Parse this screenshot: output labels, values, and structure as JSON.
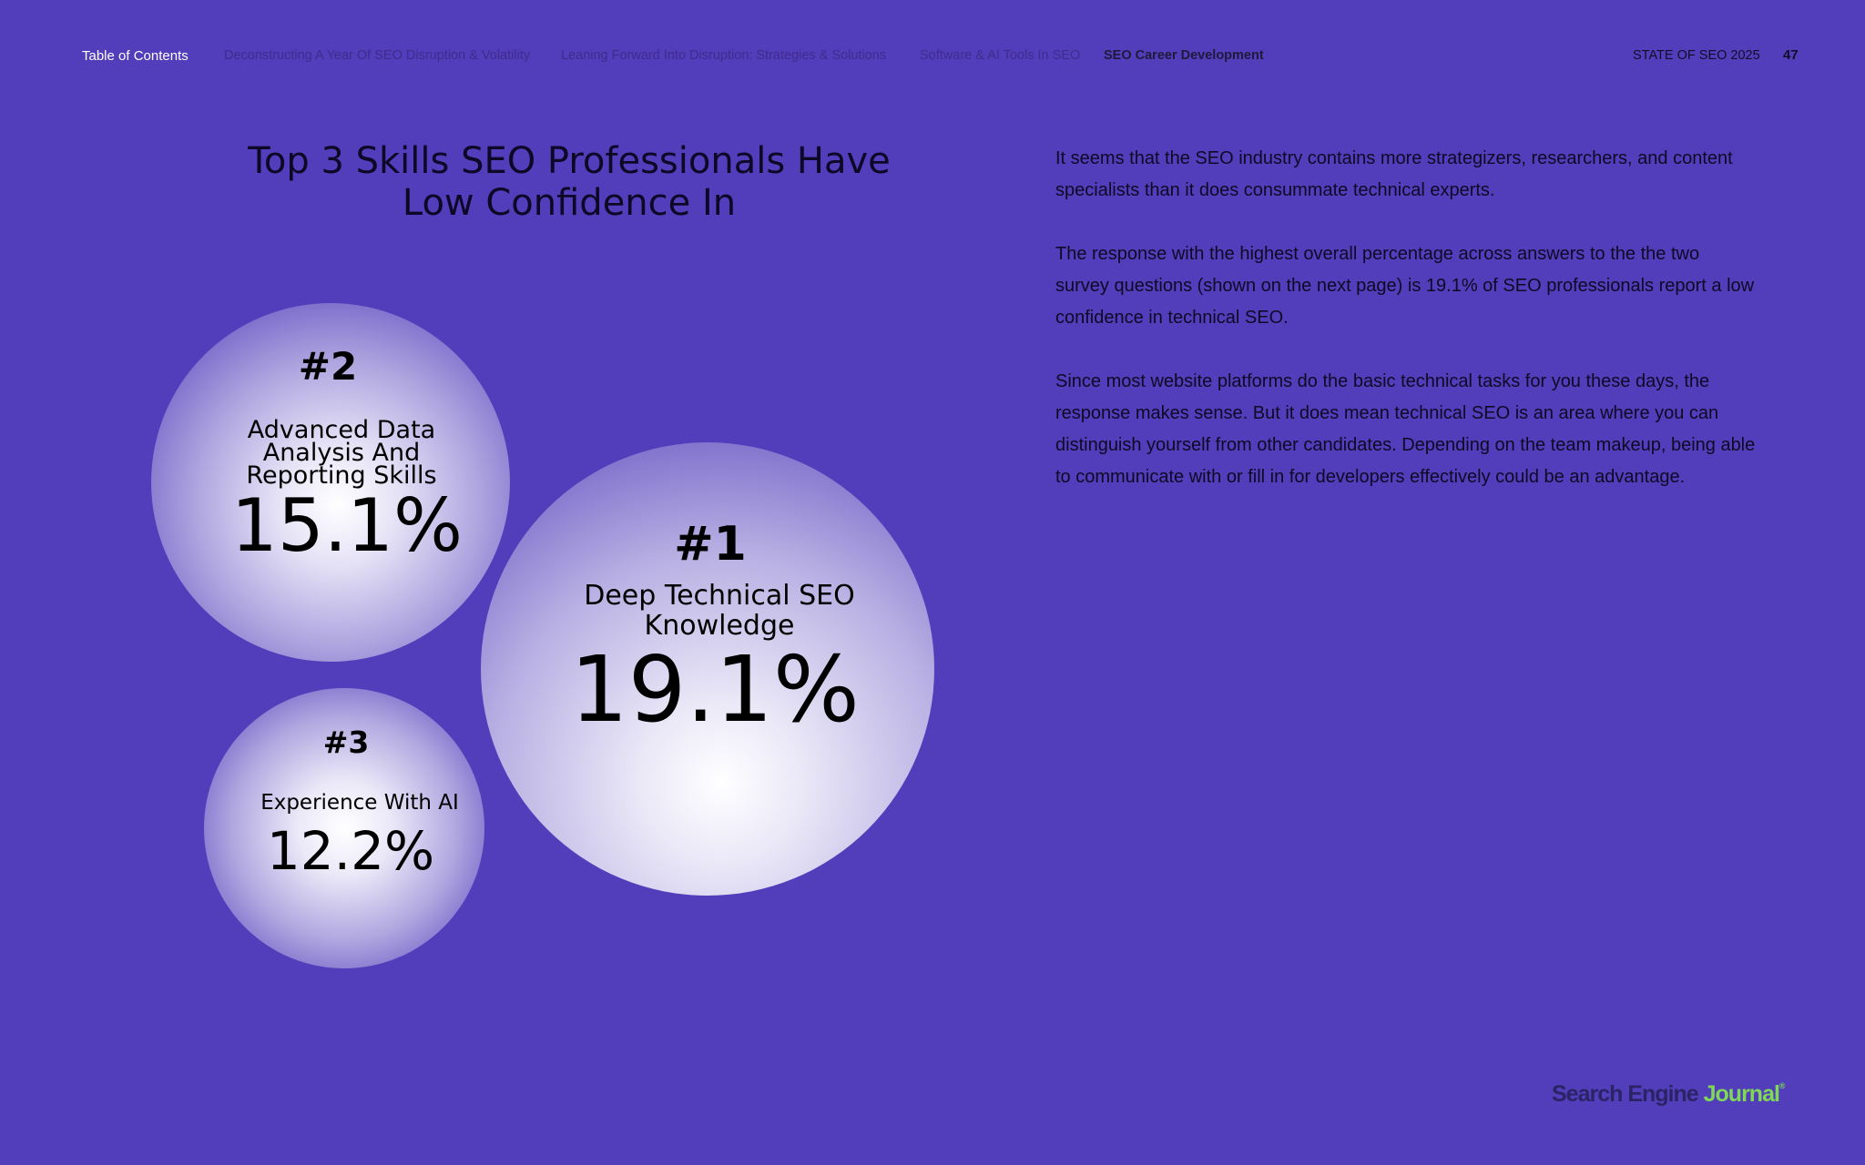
{
  "nav": {
    "toc": "Table of Contents",
    "items": [
      "Deconstructing A Year Of SEO Disruption & Volatility",
      "Leaning Forward Into Disruption: Strategies & Solutions",
      "Software & AI Tools In SEO",
      "SEO Career Development"
    ],
    "report_label": "STATE OF SEO 2025",
    "page_number": "47"
  },
  "colors": {
    "background": "#523dba",
    "text": "#0e0a24",
    "logo_dark": "#2a2466",
    "logo_green": "#7ed957"
  },
  "chart_data": {
    "type": "bubble",
    "title": "Top 3 Skills SEO Professionals Have Low Confidence In",
    "items": [
      {
        "rank": "#1",
        "skill": "Deep Technical SEO Knowledge",
        "value": 19.1,
        "label": "19.1%"
      },
      {
        "rank": "#2",
        "skill": "Advanced Data Analysis And Reporting Skills",
        "value": 15.1,
        "label": "15.1%"
      },
      {
        "rank": "#3",
        "skill": "Experience With AI",
        "value": 12.2,
        "label": "12.2%"
      }
    ]
  },
  "body": {
    "paragraphs": [
      "It seems that the SEO industry contains more strategizers, researchers, and content specialists than it does consummate technical experts.",
      "The response with the highest overall percentage across answers to the the two survey questions (shown on the next page) is 19.1% of SEO professionals report a low confidence in technical SEO.",
      "Since most website platforms do the basic technical tasks for you these days, the response makes sense. But it does mean technical SEO is an area where you can distinguish yourself from other candidates. Depending on the team makeup, being able to communicate with or fill in for developers effectively could be an advantage."
    ]
  },
  "logo": {
    "part1": "Search Engine ",
    "part2": "Journal",
    "mark": "®"
  }
}
